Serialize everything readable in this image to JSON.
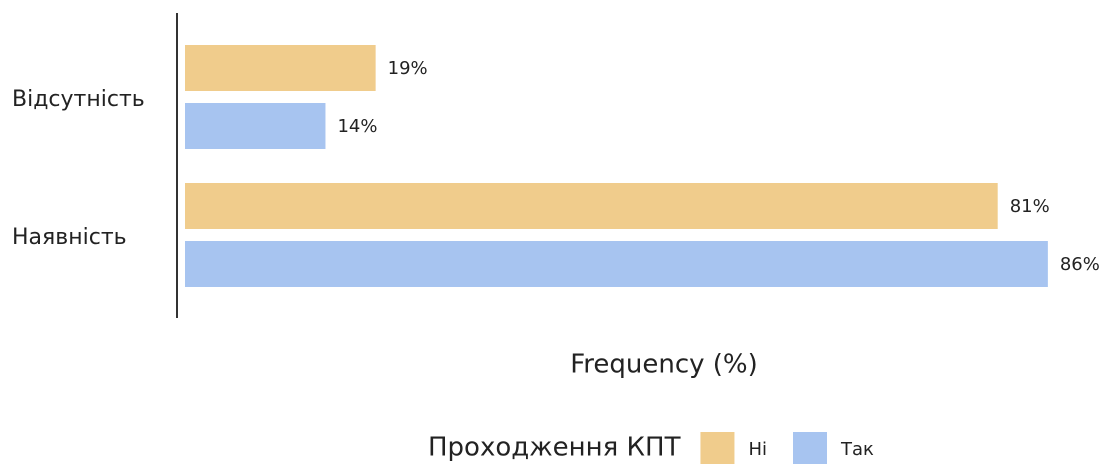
{
  "chart_data": {
    "type": "bar",
    "orientation": "horizontal",
    "categories": [
      "Відсутність",
      "Наявність"
    ],
    "series": [
      {
        "name": "Ні",
        "color": "#f0cc8c",
        "values": [
          19,
          81
        ],
        "value_labels": [
          "19%",
          "81%"
        ]
      },
      {
        "name": "Так",
        "color": "#a7c4f0",
        "values": [
          14,
          86
        ],
        "value_labels": [
          "14%",
          "86%"
        ]
      }
    ],
    "xlabel": "Frequency (%)",
    "legend_title": "Проходження КПТ",
    "legend": "bottom",
    "xlim": [
      0,
      90
    ]
  }
}
